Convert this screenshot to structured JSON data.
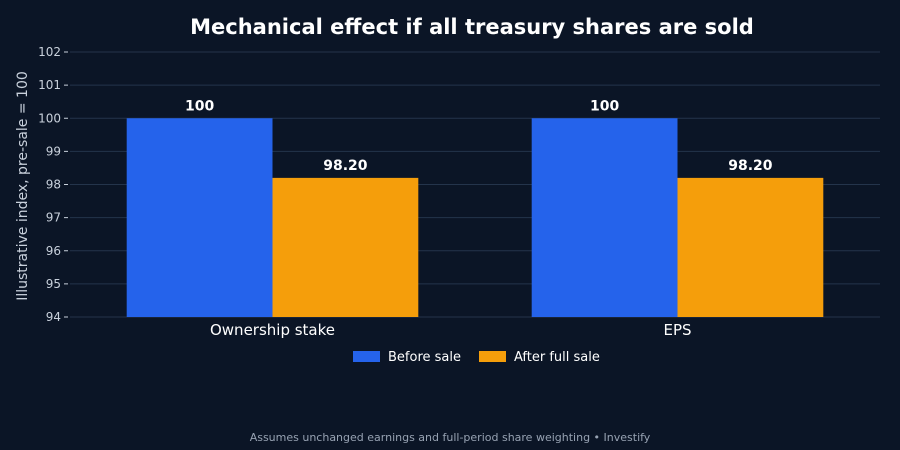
{
  "chart_data": {
    "type": "bar",
    "title": "Mechanical effect if all treasury shares are sold",
    "ylabel": "Illustrative index, pre-sale = 100",
    "xlabel": "",
    "categories": [
      "Ownership stake",
      "EPS"
    ],
    "series": [
      {
        "name": "Before sale",
        "values": [
          100,
          100
        ],
        "labels": [
          "100",
          "100"
        ],
        "color": "#2563eb"
      },
      {
        "name": "After full sale",
        "values": [
          98.2,
          98.2
        ],
        "labels": [
          "98.20",
          "98.20"
        ],
        "color": "#f59e0b"
      }
    ],
    "ylim": [
      94,
      102
    ],
    "yticks": [
      94,
      95,
      96,
      97,
      98,
      99,
      100,
      101,
      102
    ],
    "grid": true,
    "legend": "bottom-center"
  },
  "footnote": "Assumes unchanged earnings and full-period share weighting • Investify",
  "colors": {
    "background": "#0b1526",
    "grid": "#24344b"
  }
}
